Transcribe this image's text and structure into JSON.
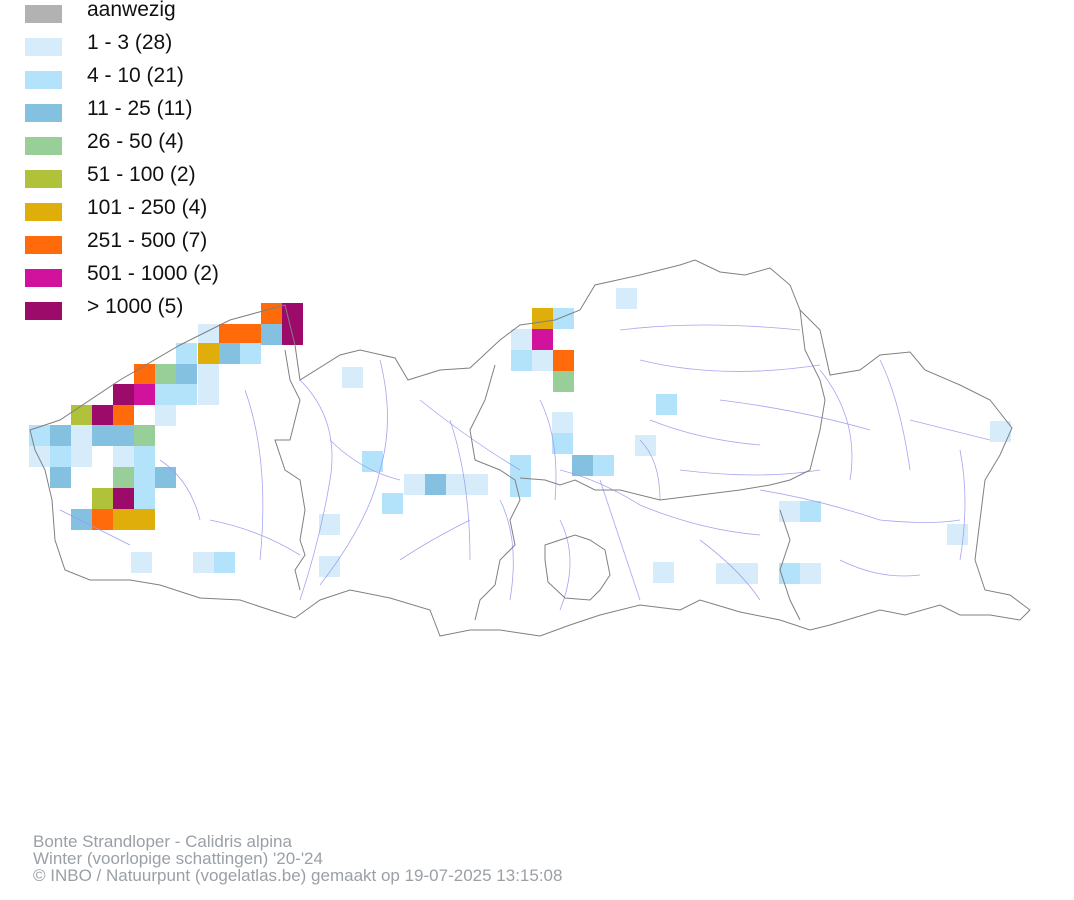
{
  "legend": [
    {
      "label": "aanwezig",
      "color": "#b2b2b2"
    },
    {
      "label": "1 - 3 (28)",
      "color": "#d6ecfa"
    },
    {
      "label": "4 - 10 (21)",
      "color": "#b3e2fb"
    },
    {
      "label": "11 - 25 (11)",
      "color": "#84c0e0"
    },
    {
      "label": "26 - 50 (4)",
      "color": "#98ce98"
    },
    {
      "label": "51 - 100 (2)",
      "color": "#b0c23a"
    },
    {
      "label": "101 - 250 (4)",
      "color": "#e0ae0a"
    },
    {
      "label": "251 - 500 (7)",
      "color": "#ff6a0a"
    },
    {
      "label": "501 - 1000 (2)",
      "color": "#d1129c"
    },
    {
      "label": "> 1000 (5)",
      "color": "#9c0a6a"
    }
  ],
  "footer": {
    "species": "Bonte Strandloper - Calidris alpina",
    "period": "Winter (voorlopige schattingen) '20-'24",
    "credit": "© INBO / Natuurpunt (vogelatlas.be) gemaakt op 19-07-2025 13:15:08"
  }
}
